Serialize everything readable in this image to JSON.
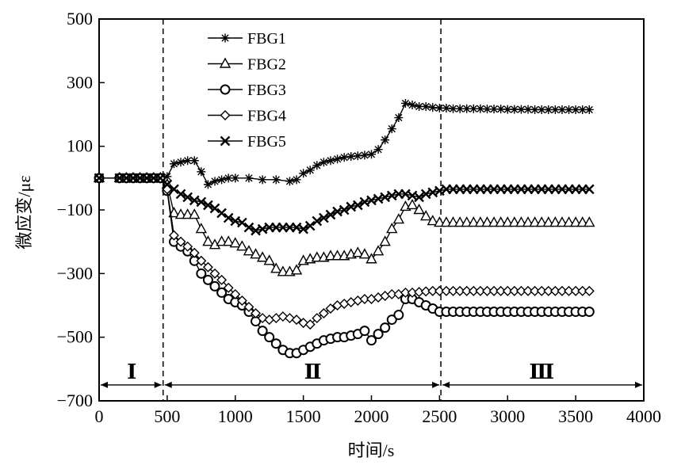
{
  "chart_data": {
    "type": "line",
    "xlabel": "时间/s",
    "ylabel": "微应变/με",
    "xlim": [
      0,
      4000
    ],
    "ylim": [
      -700,
      500
    ],
    "xticks": [
      "0",
      "500",
      "1000",
      "1500",
      "2000",
      "2500",
      "3000",
      "3500",
      "4000"
    ],
    "yticks": [
      "500",
      "300",
      "100",
      "−100",
      "−300",
      "−500",
      "−700"
    ],
    "grid": false,
    "legend_position": "top-left",
    "phase_boundaries": [
      470,
      2510
    ],
    "phases": [
      {
        "label": "Ⅰ",
        "x_center": 240
      },
      {
        "label": "Ⅱ",
        "x_center": 1570
      },
      {
        "label": "Ⅲ",
        "x_center": 3250
      }
    ],
    "series": [
      {
        "name": "FBG1",
        "marker": "asterisk",
        "x": [
          0,
          150,
          200,
          250,
          300,
          350,
          400,
          450,
          500,
          550,
          600,
          650,
          700,
          750,
          800,
          850,
          900,
          950,
          1000,
          1100,
          1200,
          1300,
          1400,
          1450,
          1500,
          1550,
          1600,
          1650,
          1700,
          1750,
          1800,
          1850,
          1900,
          1950,
          2000,
          2050,
          2100,
          2150,
          2200,
          2250,
          2300,
          2350,
          2400,
          2450,
          2500,
          2550,
          2600,
          2650,
          2700,
          2750,
          2800,
          2850,
          2900,
          2950,
          3000,
          3050,
          3100,
          3150,
          3200,
          3250,
          3300,
          3350,
          3400,
          3450,
          3500,
          3550,
          3600
        ],
        "values": [
          0,
          0,
          0,
          0,
          0,
          0,
          0,
          0,
          5,
          45,
          50,
          55,
          55,
          20,
          -20,
          -10,
          -5,
          0,
          0,
          0,
          -5,
          -5,
          -10,
          -5,
          15,
          25,
          40,
          50,
          55,
          60,
          65,
          68,
          70,
          72,
          75,
          90,
          120,
          155,
          190,
          235,
          230,
          225,
          225,
          222,
          220,
          220,
          218,
          218,
          218,
          218,
          218,
          217,
          217,
          217,
          216,
          216,
          216,
          216,
          215,
          215,
          215,
          215,
          215,
          215,
          215,
          215,
          215
        ]
      },
      {
        "name": "FBG2",
        "marker": "triangle",
        "x": [
          0,
          150,
          200,
          250,
          300,
          350,
          400,
          450,
          500,
          550,
          600,
          650,
          700,
          750,
          800,
          850,
          900,
          950,
          1000,
          1050,
          1100,
          1150,
          1200,
          1250,
          1300,
          1350,
          1400,
          1450,
          1500,
          1550,
          1600,
          1650,
          1700,
          1750,
          1800,
          1850,
          1900,
          1950,
          2000,
          2050,
          2100,
          2150,
          2200,
          2250,
          2300,
          2350,
          2400,
          2450,
          2500,
          2550,
          2600,
          2650,
          2700,
          2750,
          2800,
          2850,
          2900,
          2950,
          3000,
          3050,
          3100,
          3150,
          3200,
          3250,
          3300,
          3350,
          3400,
          3450,
          3500,
          3550,
          3600
        ],
        "values": [
          0,
          0,
          0,
          0,
          0,
          0,
          0,
          0,
          -20,
          -110,
          -115,
          -115,
          -115,
          -160,
          -200,
          -210,
          -200,
          -200,
          -205,
          -215,
          -230,
          -240,
          -250,
          -260,
          -285,
          -295,
          -295,
          -290,
          -260,
          -255,
          -250,
          -250,
          -245,
          -245,
          -245,
          -240,
          -235,
          -240,
          -255,
          -230,
          -200,
          -160,
          -130,
          -90,
          -85,
          -100,
          -120,
          -135,
          -140,
          -140,
          -140,
          -140,
          -140,
          -140,
          -140,
          -140,
          -140,
          -140,
          -140,
          -140,
          -140,
          -140,
          -140,
          -140,
          -140,
          -140,
          -140,
          -140,
          -140,
          -140,
          -140
        ]
      },
      {
        "name": "FBG3",
        "marker": "circle",
        "x": [
          0,
          150,
          200,
          250,
          300,
          350,
          400,
          450,
          500,
          550,
          600,
          650,
          700,
          750,
          800,
          850,
          900,
          950,
          1000,
          1050,
          1100,
          1150,
          1200,
          1250,
          1300,
          1350,
          1400,
          1450,
          1500,
          1550,
          1600,
          1650,
          1700,
          1750,
          1800,
          1850,
          1900,
          1950,
          2000,
          2050,
          2100,
          2150,
          2200,
          2250,
          2300,
          2350,
          2400,
          2450,
          2500,
          2550,
          2600,
          2650,
          2700,
          2750,
          2800,
          2850,
          2900,
          2950,
          3000,
          3050,
          3100,
          3150,
          3200,
          3250,
          3300,
          3350,
          3400,
          3450,
          3500,
          3550,
          3600
        ],
        "values": [
          0,
          0,
          0,
          0,
          0,
          0,
          0,
          0,
          -40,
          -200,
          -215,
          -230,
          -260,
          -300,
          -320,
          -340,
          -360,
          -380,
          -390,
          -400,
          -420,
          -450,
          -480,
          -500,
          -520,
          -540,
          -550,
          -550,
          -540,
          -530,
          -520,
          -510,
          -505,
          -500,
          -500,
          -495,
          -490,
          -480,
          -510,
          -490,
          -470,
          -445,
          -430,
          -380,
          -380,
          -390,
          -400,
          -410,
          -420,
          -420,
          -420,
          -420,
          -420,
          -420,
          -420,
          -420,
          -420,
          -420,
          -420,
          -420,
          -420,
          -420,
          -420,
          -420,
          -420,
          -420,
          -420,
          -420,
          -420,
          -420,
          -420
        ]
      },
      {
        "name": "FBG4",
        "marker": "diamond",
        "x": [
          0,
          150,
          200,
          250,
          300,
          350,
          400,
          450,
          500,
          550,
          600,
          650,
          700,
          750,
          800,
          850,
          900,
          950,
          1000,
          1050,
          1100,
          1150,
          1200,
          1250,
          1300,
          1350,
          1400,
          1450,
          1500,
          1550,
          1600,
          1650,
          1700,
          1750,
          1800,
          1850,
          1900,
          1950,
          2000,
          2050,
          2100,
          2150,
          2200,
          2250,
          2300,
          2350,
          2400,
          2450,
          2500,
          2550,
          2600,
          2650,
          2700,
          2750,
          2800,
          2850,
          2900,
          2950,
          3000,
          3050,
          3100,
          3150,
          3200,
          3250,
          3300,
          3350,
          3400,
          3450,
          3500,
          3550,
          3600
        ],
        "values": [
          0,
          0,
          0,
          0,
          0,
          0,
          0,
          0,
          -35,
          -180,
          -200,
          -215,
          -235,
          -260,
          -280,
          -300,
          -320,
          -345,
          -365,
          -385,
          -405,
          -425,
          -440,
          -445,
          -440,
          -435,
          -440,
          -445,
          -455,
          -460,
          -440,
          -425,
          -410,
          -400,
          -395,
          -390,
          -385,
          -380,
          -380,
          -375,
          -370,
          -365,
          -365,
          -360,
          -360,
          -358,
          -356,
          -355,
          -355,
          -355,
          -355,
          -355,
          -355,
          -355,
          -355,
          -355,
          -355,
          -355,
          -355,
          -355,
          -355,
          -355,
          -355,
          -355,
          -355,
          -355,
          -355,
          -355,
          -355,
          -355,
          -355
        ]
      },
      {
        "name": "FBG5",
        "marker": "x",
        "x": [
          0,
          150,
          200,
          250,
          300,
          350,
          400,
          450,
          500,
          550,
          600,
          650,
          700,
          750,
          800,
          850,
          900,
          950,
          1000,
          1050,
          1100,
          1150,
          1200,
          1250,
          1300,
          1350,
          1400,
          1450,
          1500,
          1550,
          1600,
          1650,
          1700,
          1750,
          1800,
          1850,
          1900,
          1950,
          2000,
          2050,
          2100,
          2150,
          2200,
          2250,
          2300,
          2350,
          2400,
          2450,
          2500,
          2550,
          2600,
          2650,
          2700,
          2750,
          2800,
          2850,
          2900,
          2950,
          3000,
          3050,
          3100,
          3150,
          3200,
          3250,
          3300,
          3350,
          3400,
          3450,
          3500,
          3550,
          3600
        ],
        "values": [
          0,
          0,
          0,
          0,
          0,
          0,
          0,
          0,
          -20,
          -35,
          -50,
          -60,
          -70,
          -75,
          -85,
          -95,
          -110,
          -125,
          -135,
          -140,
          -155,
          -165,
          -160,
          -155,
          -155,
          -155,
          -155,
          -155,
          -160,
          -150,
          -135,
          -125,
          -115,
          -105,
          -100,
          -90,
          -85,
          -75,
          -70,
          -65,
          -60,
          -55,
          -50,
          -50,
          -55,
          -60,
          -50,
          -45,
          -40,
          -35,
          -35,
          -35,
          -35,
          -35,
          -35,
          -35,
          -35,
          -35,
          -35,
          -35,
          -35,
          -35,
          -35,
          -35,
          -35,
          -35,
          -35,
          -35,
          -35,
          -35,
          -35
        ]
      }
    ]
  }
}
